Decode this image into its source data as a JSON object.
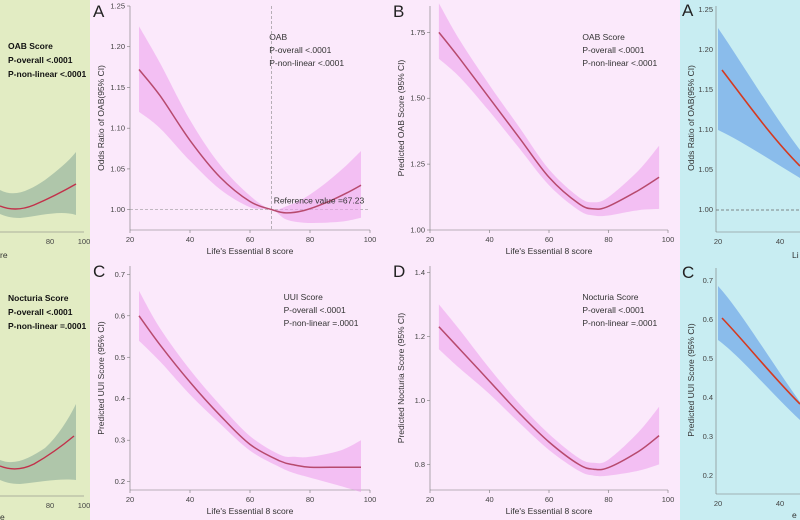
{
  "colors": {
    "page_bg": "#fbe9fb",
    "left_strip_bg": "#e2ecc3",
    "right_strip_bg": "#c8edf2",
    "pink_band": "#ec9ded",
    "pink_line": "#b74a6e",
    "green_band": "#a6bfa6",
    "green_line": "#c2314a",
    "blue_band": "#7fb3ea",
    "blue_line": "#d53a20"
  },
  "left_strip": {
    "top_annotation": [
      "OAB Score",
      "P-overall <.0001",
      "P-non-linear <.0001"
    ],
    "top_ticks": [
      "80",
      "100"
    ],
    "top_xlabel": "re",
    "bottom_annotation": [
      "Nocturia Score",
      "P-overall <.0001",
      "P-non-linear =.0001"
    ],
    "bottom_ticks": [
      "80",
      "100"
    ],
    "bottom_xlabel": "e"
  },
  "right_strip": {
    "top_letter": "A",
    "top_ylabel": "Odds Ratio of OAB(95% CI)",
    "top_yticks": [
      "1.25",
      "1.20",
      "1.15",
      "1.10",
      "1.05",
      "1.00"
    ],
    "top_xticks": [
      "20",
      "40"
    ],
    "top_xlabel": "Li",
    "bottom_letter": "C",
    "bottom_ylabel": "Predicted UUI Score (95% CI)",
    "bottom_yticks": [
      "0.7",
      "0.6",
      "0.5",
      "0.4",
      "0.3",
      "0.2"
    ],
    "bottom_xticks": [
      "20",
      "40"
    ],
    "bottom_xlabel": "e"
  },
  "chart_data": [
    {
      "letter": "A",
      "type": "line",
      "ylabel": "Odds Ratio of OAB(95% CI)",
      "xlabel": "Life's Essential 8 score",
      "annotation": [
        "OAB",
        "P-overall <.0001",
        "P-non-linear <.0001"
      ],
      "xlim": [
        20,
        100
      ],
      "ylim": [
        0.975,
        1.25
      ],
      "xticks": [
        20,
        40,
        60,
        80,
        100
      ],
      "yticks": [
        1.0,
        1.05,
        1.1,
        1.15,
        1.2,
        1.25
      ],
      "ytick_labels": [
        "1.00",
        "1.05",
        "1.10",
        "1.15",
        "1.20",
        "1.25"
      ],
      "reference_value": 67.23,
      "reference_label": "Reference value =67.23",
      "x": [
        23,
        30,
        40,
        50,
        60,
        67.23,
        72,
        78,
        85,
        92,
        97
      ],
      "y": [
        1.172,
        1.14,
        1.085,
        1.04,
        1.01,
        1.0,
        0.996,
        0.999,
        1.008,
        1.02,
        1.03
      ],
      "lower": [
        1.12,
        1.1,
        1.06,
        1.025,
        1.003,
        1.0,
        0.988,
        0.984,
        0.984,
        0.986,
        0.99
      ],
      "upper": [
        1.225,
        1.18,
        1.11,
        1.055,
        1.017,
        1.0,
        1.004,
        1.014,
        1.032,
        1.054,
        1.072
      ]
    },
    {
      "letter": "B",
      "type": "line",
      "ylabel": "Predicted OAB Score (95% CI)",
      "xlabel": "Life's Essential 8 score",
      "annotation": [
        "OAB Score",
        "P-overall <.0001",
        "P-non-linear <.0001"
      ],
      "xlim": [
        20,
        100
      ],
      "ylim": [
        1.0,
        1.85
      ],
      "xticks": [
        20,
        40,
        60,
        80,
        100
      ],
      "yticks": [
        1.0,
        1.25,
        1.5,
        1.75
      ],
      "ytick_labels": [
        "1.00",
        "1.25",
        "1.50",
        "1.75"
      ],
      "x": [
        23,
        30,
        40,
        50,
        60,
        70,
        75,
        80,
        90,
        97
      ],
      "y": [
        1.75,
        1.65,
        1.5,
        1.35,
        1.2,
        1.1,
        1.08,
        1.09,
        1.15,
        1.2
      ],
      "lower": [
        1.65,
        1.58,
        1.45,
        1.31,
        1.17,
        1.075,
        1.055,
        1.055,
        1.075,
        1.08
      ],
      "upper": [
        1.86,
        1.72,
        1.55,
        1.39,
        1.23,
        1.125,
        1.105,
        1.125,
        1.225,
        1.32
      ]
    },
    {
      "letter": "C",
      "type": "line",
      "ylabel": "Predicted UUI Score (95% CI)",
      "xlabel": "Life's Essential 8 score",
      "annotation": [
        "UUI Score",
        "P-overall <.0001",
        "P-non-linear =.0001"
      ],
      "xlim": [
        20,
        100
      ],
      "ylim": [
        0.18,
        0.72
      ],
      "xticks": [
        20,
        40,
        60,
        80,
        100
      ],
      "yticks": [
        0.2,
        0.3,
        0.4,
        0.5,
        0.6,
        0.7
      ],
      "ytick_labels": [
        "0.2",
        "0.3",
        "0.4",
        "0.5",
        "0.6",
        "0.7"
      ],
      "x": [
        23,
        30,
        40,
        50,
        60,
        70,
        75,
        80,
        90,
        97
      ],
      "y": [
        0.6,
        0.53,
        0.44,
        0.36,
        0.29,
        0.25,
        0.24,
        0.235,
        0.235,
        0.235
      ],
      "lower": [
        0.54,
        0.49,
        0.41,
        0.34,
        0.275,
        0.235,
        0.22,
        0.21,
        0.19,
        0.175
      ],
      "upper": [
        0.66,
        0.57,
        0.47,
        0.385,
        0.31,
        0.265,
        0.26,
        0.26,
        0.275,
        0.3
      ]
    },
    {
      "letter": "D",
      "type": "line",
      "ylabel": "Predicted Nocturia Score (95% CI)",
      "xlabel": "Life's Essential 8 score",
      "annotation": [
        "Nocturia Score",
        "P-overall <.0001",
        "P-non-linear =.0001"
      ],
      "xlim": [
        20,
        100
      ],
      "ylim": [
        0.72,
        1.42
      ],
      "xticks": [
        20,
        40,
        60,
        80,
        100
      ],
      "yticks": [
        0.8,
        1.0,
        1.2,
        1.4
      ],
      "ytick_labels": [
        "0.8",
        "1.0",
        "1.2",
        "1.4"
      ],
      "x": [
        23,
        30,
        40,
        50,
        60,
        70,
        75,
        80,
        90,
        97
      ],
      "y": [
        1.23,
        1.16,
        1.06,
        0.96,
        0.87,
        0.8,
        0.785,
        0.79,
        0.84,
        0.89
      ],
      "lower": [
        1.16,
        1.1,
        1.02,
        0.93,
        0.845,
        0.78,
        0.765,
        0.765,
        0.78,
        0.8
      ],
      "upper": [
        1.3,
        1.22,
        1.1,
        0.99,
        0.895,
        0.82,
        0.805,
        0.815,
        0.9,
        0.98
      ]
    }
  ]
}
